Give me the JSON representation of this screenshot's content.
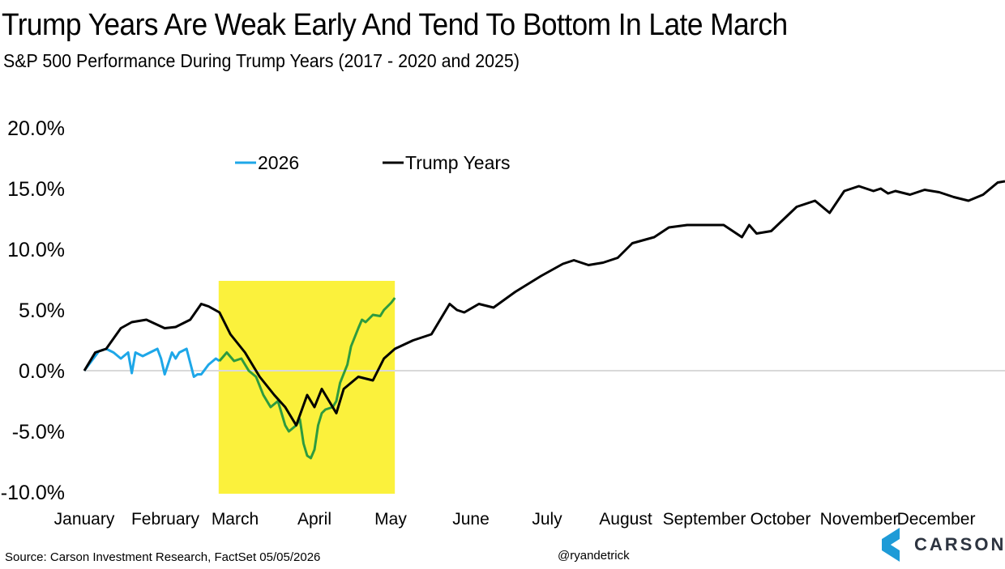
{
  "header": {
    "title": "Trump Years Are Weak Early And Tend To Bottom In Late March",
    "subtitle": "S&P 500 Performance During Trump Years (2017 - 2020 and 2025)"
  },
  "footer": {
    "source": "Source: Carson Investment Research, FactSet 05/05/2026",
    "handle": "@ryandetrick"
  },
  "brand": {
    "name": "CARSON",
    "icon": "carson-logo-icon",
    "color": "#1e9bd7"
  },
  "colors": {
    "trump": "#000000",
    "y2026_outside": "#1ea7e8",
    "y2026_inside": "#2e9b3f",
    "highlight": "#fbf13c",
    "zero_line": "#d9d9d9"
  },
  "chart_data": {
    "type": "line",
    "title": "Trump Years Are Weak Early And Tend To Bottom In Late March",
    "subtitle": "S&P 500 Performance During Trump Years (2017 - 2020 and 2025)",
    "x_unit": "trading day of year",
    "ylim": [
      -10,
      20
    ],
    "yticks": [
      -10,
      -5,
      0,
      5,
      10,
      15,
      20
    ],
    "ytick_labels": [
      "-10.0%",
      "-5.0%",
      "0.0%",
      "5.0%",
      "10.0%",
      "15.0%",
      "20.0%"
    ],
    "months": [
      "January",
      "February",
      "March",
      "April",
      "May",
      "June",
      "July",
      "August",
      "September",
      "October",
      "November",
      "December"
    ],
    "legend_position": "top-left",
    "highlight_region": {
      "from_day": 37,
      "to_day": 85,
      "meaning": "early March through early May"
    },
    "series": [
      {
        "name": "Trump Years",
        "x": [
          0,
          3,
          6,
          10,
          13,
          17,
          22,
          25,
          29,
          32,
          34,
          37,
          40,
          44,
          48,
          52,
          55,
          58,
          61,
          63,
          65,
          67,
          69,
          71,
          75,
          79,
          82,
          85,
          90,
          95,
          100,
          102,
          104,
          108,
          112,
          118,
          125,
          131,
          134,
          138,
          142,
          146,
          150,
          156,
          160,
          165,
          170,
          175,
          180,
          182,
          184,
          188,
          195,
          200,
          204,
          208,
          212,
          216,
          218,
          220,
          222,
          226,
          230,
          234,
          238,
          242,
          246,
          250,
          252
        ],
        "values": [
          0.0,
          1.5,
          1.8,
          3.5,
          4.0,
          4.2,
          3.5,
          3.6,
          4.2,
          5.5,
          5.3,
          4.8,
          3.0,
          1.5,
          -0.5,
          -2.0,
          -3.0,
          -4.5,
          -2.0,
          -3.0,
          -1.5,
          -2.5,
          -3.5,
          -1.5,
          -0.5,
          -0.8,
          1.0,
          1.8,
          2.5,
          3.0,
          5.5,
          5.0,
          4.8,
          5.5,
          5.2,
          6.5,
          7.8,
          8.8,
          9.1,
          8.7,
          8.9,
          9.3,
          10.5,
          11.0,
          11.8,
          12.0,
          12.0,
          12.0,
          11.0,
          12.0,
          11.3,
          11.5,
          13.5,
          14.0,
          13.0,
          14.8,
          15.2,
          14.8,
          15.0,
          14.6,
          14.8,
          14.5,
          14.9,
          14.7,
          14.3,
          14.0,
          14.5,
          15.5,
          15.6
        ]
      },
      {
        "name": "2026",
        "x": [
          0,
          2,
          4,
          6,
          8,
          10,
          12,
          13,
          14,
          16,
          18,
          20,
          21,
          22,
          24,
          25,
          26,
          28,
          30,
          31,
          32,
          34,
          36,
          37,
          39,
          41,
          43,
          45,
          47,
          49,
          51,
          53,
          55,
          56,
          58,
          59,
          60,
          61,
          62,
          63,
          64,
          65,
          66,
          68,
          69,
          70,
          72,
          73,
          75,
          76,
          77,
          79,
          81,
          82,
          84,
          85
        ],
        "values": [
          0.0,
          0.8,
          1.6,
          1.8,
          1.5,
          1.0,
          1.5,
          -0.2,
          1.5,
          1.2,
          1.5,
          1.8,
          1.0,
          -0.3,
          1.5,
          1.0,
          1.5,
          1.8,
          -0.5,
          -0.3,
          -0.3,
          0.5,
          1.0,
          0.8,
          1.5,
          0.8,
          1.0,
          0.0,
          -0.5,
          -2.0,
          -3.0,
          -2.5,
          -4.5,
          -5.0,
          -4.5,
          -4.0,
          -6.0,
          -7.0,
          -7.2,
          -6.5,
          -4.5,
          -3.5,
          -3.2,
          -3.0,
          -2.5,
          -1.0,
          0.5,
          2.0,
          3.5,
          4.2,
          4.0,
          4.6,
          4.5,
          5.0,
          5.6,
          6.0
        ]
      }
    ]
  }
}
